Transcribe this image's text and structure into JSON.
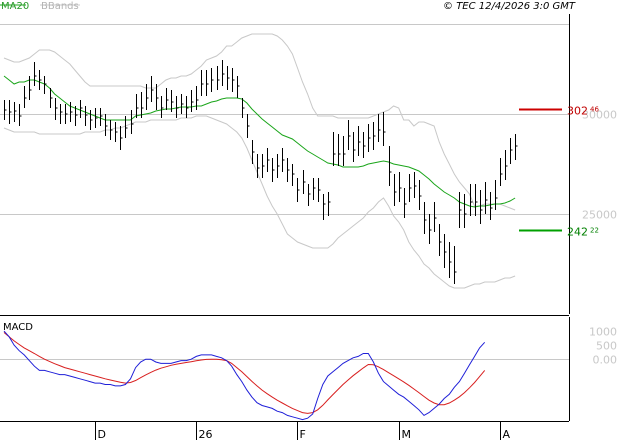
{
  "header": {
    "ma_label": "MA20",
    "bb_label": "BBands",
    "watermark": "© TEC 12/4/2026 3:0 GMT"
  },
  "colors": {
    "ma": "#1aa51a",
    "bbands": "#c8c8c8",
    "resistance": "#cc0000",
    "support": "#00a000",
    "macd": "#1f1fd8",
    "signal": "#d81f1f",
    "candles": "#000000",
    "grid": "#c8c8c8"
  },
  "chart_data": [
    {
      "type": "ohlc",
      "title": "",
      "x_labels": [
        "D",
        "26",
        "F",
        "M",
        "A"
      ],
      "x_label_index": [
        18,
        38,
        58,
        78,
        98
      ],
      "y_ticks": [
        "30000",
        "25000"
      ],
      "y_tick_values": [
        30000,
        25000
      ],
      "ylim": [
        20000,
        35000
      ],
      "levels": [
        {
          "name": "resistance",
          "value": 30246,
          "main": "302",
          "small": "46"
        },
        {
          "name": "support",
          "value": 24222,
          "main": "242",
          "small": "22"
        }
      ],
      "close": [
        30200,
        30100,
        30150,
        29900,
        30800,
        31200,
        31900,
        31700,
        31500,
        30800,
        30300,
        30100,
        30000,
        30100,
        29950,
        30300,
        29950,
        29700,
        29800,
        29900,
        29400,
        29200,
        29100,
        28800,
        29300,
        29500,
        30300,
        30300,
        30800,
        31200,
        30800,
        30300,
        30700,
        30600,
        30300,
        30500,
        30300,
        30600,
        30700,
        31500,
        31500,
        31700,
        31700,
        32000,
        31800,
        31700,
        31400,
        30300,
        29400,
        28100,
        27300,
        27400,
        27700,
        27200,
        27400,
        27700,
        27200,
        27000,
        26200,
        26600,
        26000,
        26300,
        26200,
        25500,
        25600,
        28000,
        28000,
        28000,
        28900,
        28200,
        28600,
        28400,
        28800,
        28900,
        29200,
        29100,
        27100,
        26100,
        26300,
        25500,
        26300,
        26400,
        25900,
        24700,
        24200,
        24800,
        23600,
        23100,
        22600,
        22100,
        25200,
        25000,
        25600,
        25600,
        25200,
        25700,
        25300,
        25800,
        27000,
        27400,
        28200,
        28400
      ],
      "high": [
        30700,
        30700,
        30600,
        30500,
        31400,
        31900,
        32600,
        32200,
        31900,
        31300,
        30800,
        30500,
        30500,
        30600,
        30400,
        30700,
        30400,
        30200,
        30300,
        30300,
        30000,
        29700,
        29600,
        29400,
        29900,
        30200,
        31000,
        31100,
        31500,
        31900,
        31500,
        30900,
        31300,
        31200,
        30900,
        31000,
        30900,
        31200,
        31400,
        32200,
        32200,
        32300,
        32400,
        32700,
        32400,
        32300,
        31900,
        30800,
        30000,
        28700,
        28000,
        28000,
        28300,
        27800,
        28000,
        28300,
        27800,
        27500,
        26800,
        27200,
        26500,
        26800,
        26800,
        26000,
        26100,
        29100,
        29000,
        28900,
        29700,
        29100,
        29400,
        29100,
        29500,
        29600,
        30000,
        30100,
        28400,
        27000,
        27100,
        26300,
        27000,
        27100,
        26700,
        25600,
        25000,
        25600,
        24500,
        24000,
        23600,
        23400,
        26100,
        26000,
        26500,
        26500,
        26200,
        26600,
        26100,
        26700,
        27800,
        28200,
        28800,
        29000
      ],
      "low": [
        29700,
        29500,
        29600,
        29400,
        30300,
        30700,
        31400,
        31200,
        31000,
        30300,
        29700,
        29500,
        29500,
        29600,
        29400,
        29800,
        29400,
        29200,
        29300,
        29400,
        28900,
        28700,
        28600,
        28200,
        28800,
        29000,
        29800,
        29800,
        30200,
        30600,
        30200,
        29800,
        30200,
        30100,
        29800,
        30000,
        29800,
        30100,
        30200,
        30900,
        30900,
        31100,
        31200,
        31400,
        31200,
        31100,
        30800,
        29800,
        28800,
        27500,
        26800,
        26800,
        27100,
        26600,
        26800,
        27100,
        26600,
        26400,
        25600,
        26000,
        25400,
        25700,
        25600,
        24700,
        24900,
        27400,
        27400,
        27400,
        28200,
        27600,
        27900,
        27800,
        28100,
        28200,
        28600,
        28400,
        26400,
        25400,
        25600,
        24800,
        25600,
        25800,
        25200,
        24000,
        23500,
        24100,
        22900,
        22300,
        21800,
        21500,
        24300,
        24300,
        24900,
        24900,
        24500,
        25000,
        24700,
        25200,
        26400,
        26700,
        27500,
        27700
      ],
      "ma20": [
        31900,
        31700,
        31500,
        31600,
        31600,
        31700,
        31700,
        31600,
        31500,
        31300,
        31000,
        30800,
        30600,
        30400,
        30300,
        30200,
        30100,
        30000,
        29900,
        29800,
        29700,
        29700,
        29700,
        29700,
        29700,
        29700,
        29900,
        29950,
        30000,
        30050,
        30150,
        30200,
        30250,
        30250,
        30300,
        30350,
        30350,
        30350,
        30400,
        30400,
        30500,
        30600,
        30650,
        30750,
        30800,
        30800,
        30800,
        30750,
        30550,
        30250,
        30000,
        29750,
        29550,
        29350,
        29150,
        28950,
        28850,
        28750,
        28550,
        28350,
        28150,
        28000,
        27850,
        27700,
        27550,
        27500,
        27450,
        27350,
        27350,
        27350,
        27350,
        27400,
        27500,
        27550,
        27600,
        27650,
        27600,
        27500,
        27450,
        27400,
        27350,
        27250,
        27150,
        26950,
        26750,
        26500,
        26300,
        26100,
        25950,
        25800,
        25600,
        25500,
        25400,
        25350,
        25400,
        25400,
        25450,
        25500,
        25500,
        25550,
        25650,
        25800
      ],
      "bb_upper": [
        32800,
        32700,
        32600,
        32600,
        32700,
        32800,
        33000,
        33200,
        33200,
        33200,
        33100,
        32900,
        32700,
        32500,
        32200,
        31900,
        31600,
        31400,
        31400,
        31400,
        31400,
        31400,
        31400,
        31400,
        31400,
        31400,
        31400,
        31400,
        31300,
        31300,
        31300,
        31500,
        31700,
        31800,
        31800,
        31900,
        31900,
        32000,
        32200,
        32400,
        32700,
        32800,
        32900,
        33100,
        33400,
        33400,
        33600,
        33800,
        33900,
        34000,
        34000,
        34000,
        34000,
        34000,
        33900,
        33700,
        33400,
        33000,
        32300,
        31600,
        31000,
        30300,
        29900,
        29900,
        29900,
        29900,
        29800,
        29800,
        29800,
        29800,
        29800,
        29800,
        29800,
        29900,
        30000,
        30100,
        30200,
        30400,
        30300,
        29700,
        29700,
        29400,
        29600,
        29600,
        29500,
        29400,
        28600,
        28000,
        27500,
        27000,
        26600,
        26300,
        26000,
        25400,
        25400,
        25500,
        25500,
        25500,
        25500,
        25400,
        25300,
        25200
      ],
      "bb_lower": [
        29300,
        29200,
        29100,
        29100,
        29100,
        29100,
        29100,
        29000,
        29000,
        29000,
        29000,
        29000,
        29000,
        29000,
        29000,
        29000,
        29100,
        29100,
        29100,
        29100,
        29200,
        29200,
        29300,
        29300,
        29400,
        29500,
        29600,
        29600,
        29600,
        29700,
        29700,
        29700,
        29700,
        29700,
        29700,
        29800,
        29800,
        29800,
        29900,
        29900,
        29900,
        29800,
        29700,
        29600,
        29500,
        29300,
        29100,
        28800,
        28300,
        27700,
        27100,
        26500,
        25900,
        25400,
        25000,
        24500,
        24000,
        23800,
        23600,
        23500,
        23400,
        23300,
        23300,
        23300,
        23300,
        23500,
        23800,
        24000,
        24200,
        24400,
        24600,
        24800,
        25100,
        25300,
        25600,
        25800,
        25400,
        24900,
        24600,
        24200,
        23600,
        23200,
        22900,
        22500,
        22300,
        22000,
        21800,
        21600,
        21400,
        21300,
        21300,
        21300,
        21400,
        21500,
        21500,
        21600,
        21600,
        21600,
        21700,
        21800,
        21800,
        21900
      ],
      "n_points": 102
    },
    {
      "type": "line",
      "title": "MACD",
      "y_ticks": [
        "1000",
        "500",
        "0.00"
      ],
      "y_tick_values": [
        1000,
        500,
        0
      ],
      "ylim": [
        -2200,
        1500
      ],
      "macd": [
        1000,
        800,
        500,
        300,
        150,
        -50,
        -250,
        -400,
        -400,
        -450,
        -500,
        -550,
        -550,
        -600,
        -650,
        -700,
        -750,
        -800,
        -850,
        -850,
        -900,
        -900,
        -950,
        -950,
        -900,
        -700,
        -300,
        -100,
        0,
        0,
        -100,
        -150,
        -150,
        -150,
        -100,
        -50,
        -50,
        0,
        100,
        150,
        150,
        150,
        100,
        50,
        -50,
        -250,
        -550,
        -800,
        -1100,
        -1350,
        -1550,
        -1650,
        -1700,
        -1750,
        -1850,
        -1900,
        -2000,
        -2050,
        -2100,
        -2150,
        -2100,
        -1950,
        -1400,
        -900,
        -600,
        -450,
        -300,
        -150,
        -50,
        50,
        100,
        200,
        200,
        -100,
        -500,
        -800,
        -950,
        -1100,
        -1250,
        -1350,
        -1500,
        -1650,
        -1800,
        -2000,
        -1900,
        -1750,
        -1600,
        -1400,
        -1250,
        -1000,
        -800,
        -500,
        -200,
        100,
        400,
        600
      ],
      "signal": [
        950,
        800,
        650,
        520,
        400,
        300,
        200,
        100,
        0,
        -80,
        -160,
        -230,
        -300,
        -350,
        -400,
        -450,
        -500,
        -550,
        -600,
        -650,
        -700,
        -740,
        -780,
        -820,
        -850,
        -830,
        -760,
        -660,
        -560,
        -470,
        -390,
        -320,
        -270,
        -220,
        -180,
        -150,
        -120,
        -90,
        -60,
        -30,
        -10,
        0,
        0,
        -20,
        -50,
        -150,
        -300,
        -450,
        -620,
        -790,
        -950,
        -1100,
        -1230,
        -1350,
        -1460,
        -1560,
        -1660,
        -1750,
        -1830,
        -1900,
        -1930,
        -1900,
        -1800,
        -1640,
        -1450,
        -1260,
        -1080,
        -900,
        -740,
        -590,
        -450,
        -310,
        -190,
        -200,
        -270,
        -370,
        -480,
        -590,
        -700,
        -810,
        -930,
        -1060,
        -1190,
        -1330,
        -1460,
        -1560,
        -1620,
        -1620,
        -1560,
        -1460,
        -1340,
        -1190,
        -1020,
        -830,
        -620,
        -400
      ]
    }
  ]
}
